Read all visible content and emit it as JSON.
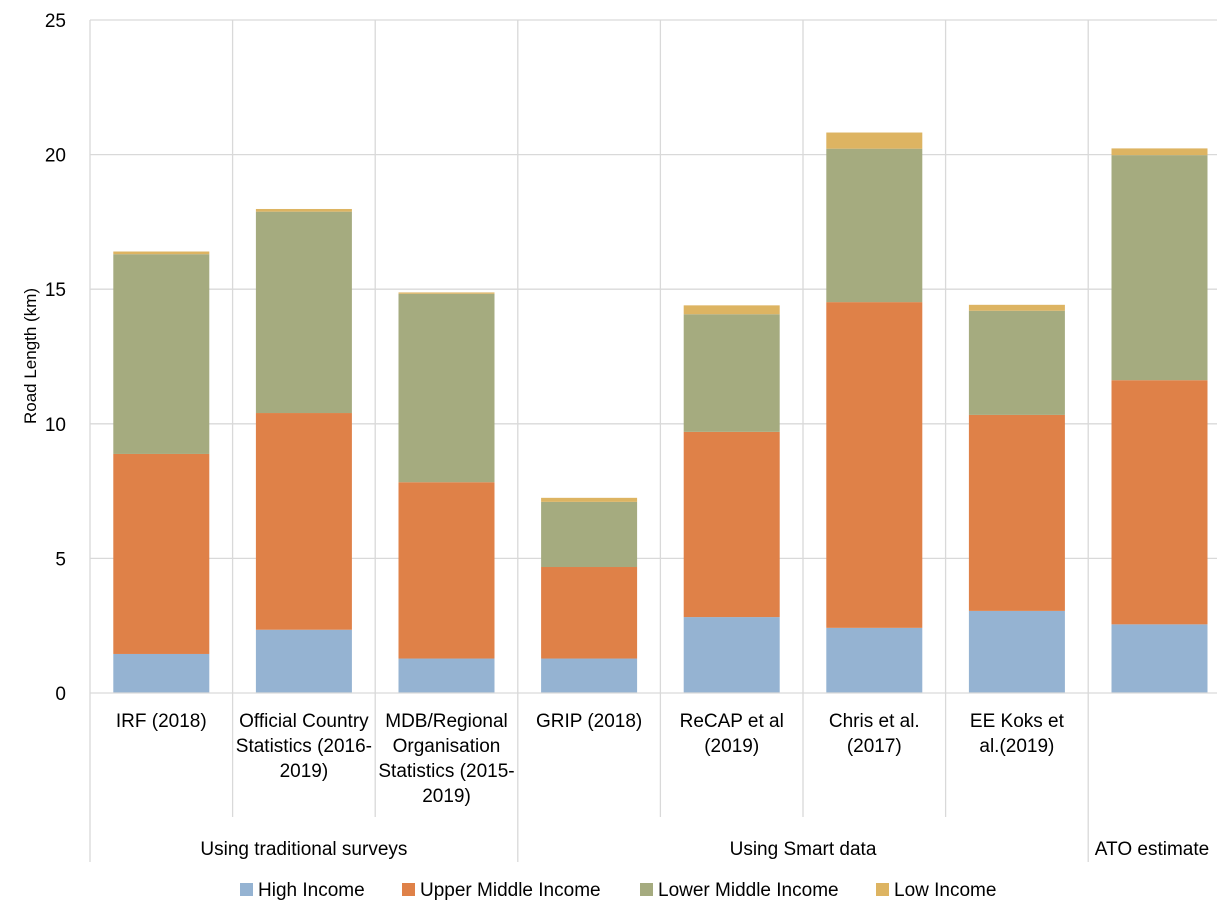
{
  "chart_data": {
    "type": "bar",
    "stacked": true,
    "title": "",
    "ylabel": "Road Length (km)",
    "ylim": [
      0,
      25
    ],
    "yticks": [
      0,
      5,
      10,
      15,
      20,
      25
    ],
    "grid": true,
    "legend_position": "bottom",
    "categories": [
      [
        "IRF (2018)"
      ],
      [
        "Official Country",
        "Statistics (2016-",
        "2019)"
      ],
      [
        "MDB/Regional",
        "Organisation",
        "Statistics (2015-",
        "2019)"
      ],
      [
        "GRIP (2018)"
      ],
      [
        "ReCAP et al",
        "(2019)"
      ],
      [
        "Chris et al.",
        "(2017)"
      ],
      [
        "EE Koks et",
        "al.(2019)"
      ],
      [
        ""
      ]
    ],
    "groups": [
      {
        "label": "Using traditional surveys",
        "start": 0,
        "end": 2
      },
      {
        "label": "Using Smart data",
        "start": 3,
        "end": 6
      },
      {
        "label": "ATO estimate",
        "start": 7,
        "end": 7
      }
    ],
    "series": [
      {
        "name": "High Income",
        "color": "#95b3d2",
        "values": [
          1.45,
          2.35,
          1.28,
          1.28,
          2.82,
          2.42,
          3.05,
          2.55
        ]
      },
      {
        "name": "Upper Middle Income",
        "color": "#df8148",
        "values": [
          7.43,
          8.05,
          6.55,
          3.4,
          6.88,
          12.1,
          7.28,
          9.07
        ]
      },
      {
        "name": "Lower Middle Income",
        "color": "#a5ab7f",
        "values": [
          7.42,
          7.48,
          7.0,
          2.42,
          4.37,
          5.7,
          3.87,
          8.36
        ]
      },
      {
        "name": "Low Income",
        "color": "#ddb462",
        "values": [
          0.1,
          0.1,
          0.05,
          0.15,
          0.33,
          0.6,
          0.22,
          0.25
        ]
      }
    ]
  }
}
